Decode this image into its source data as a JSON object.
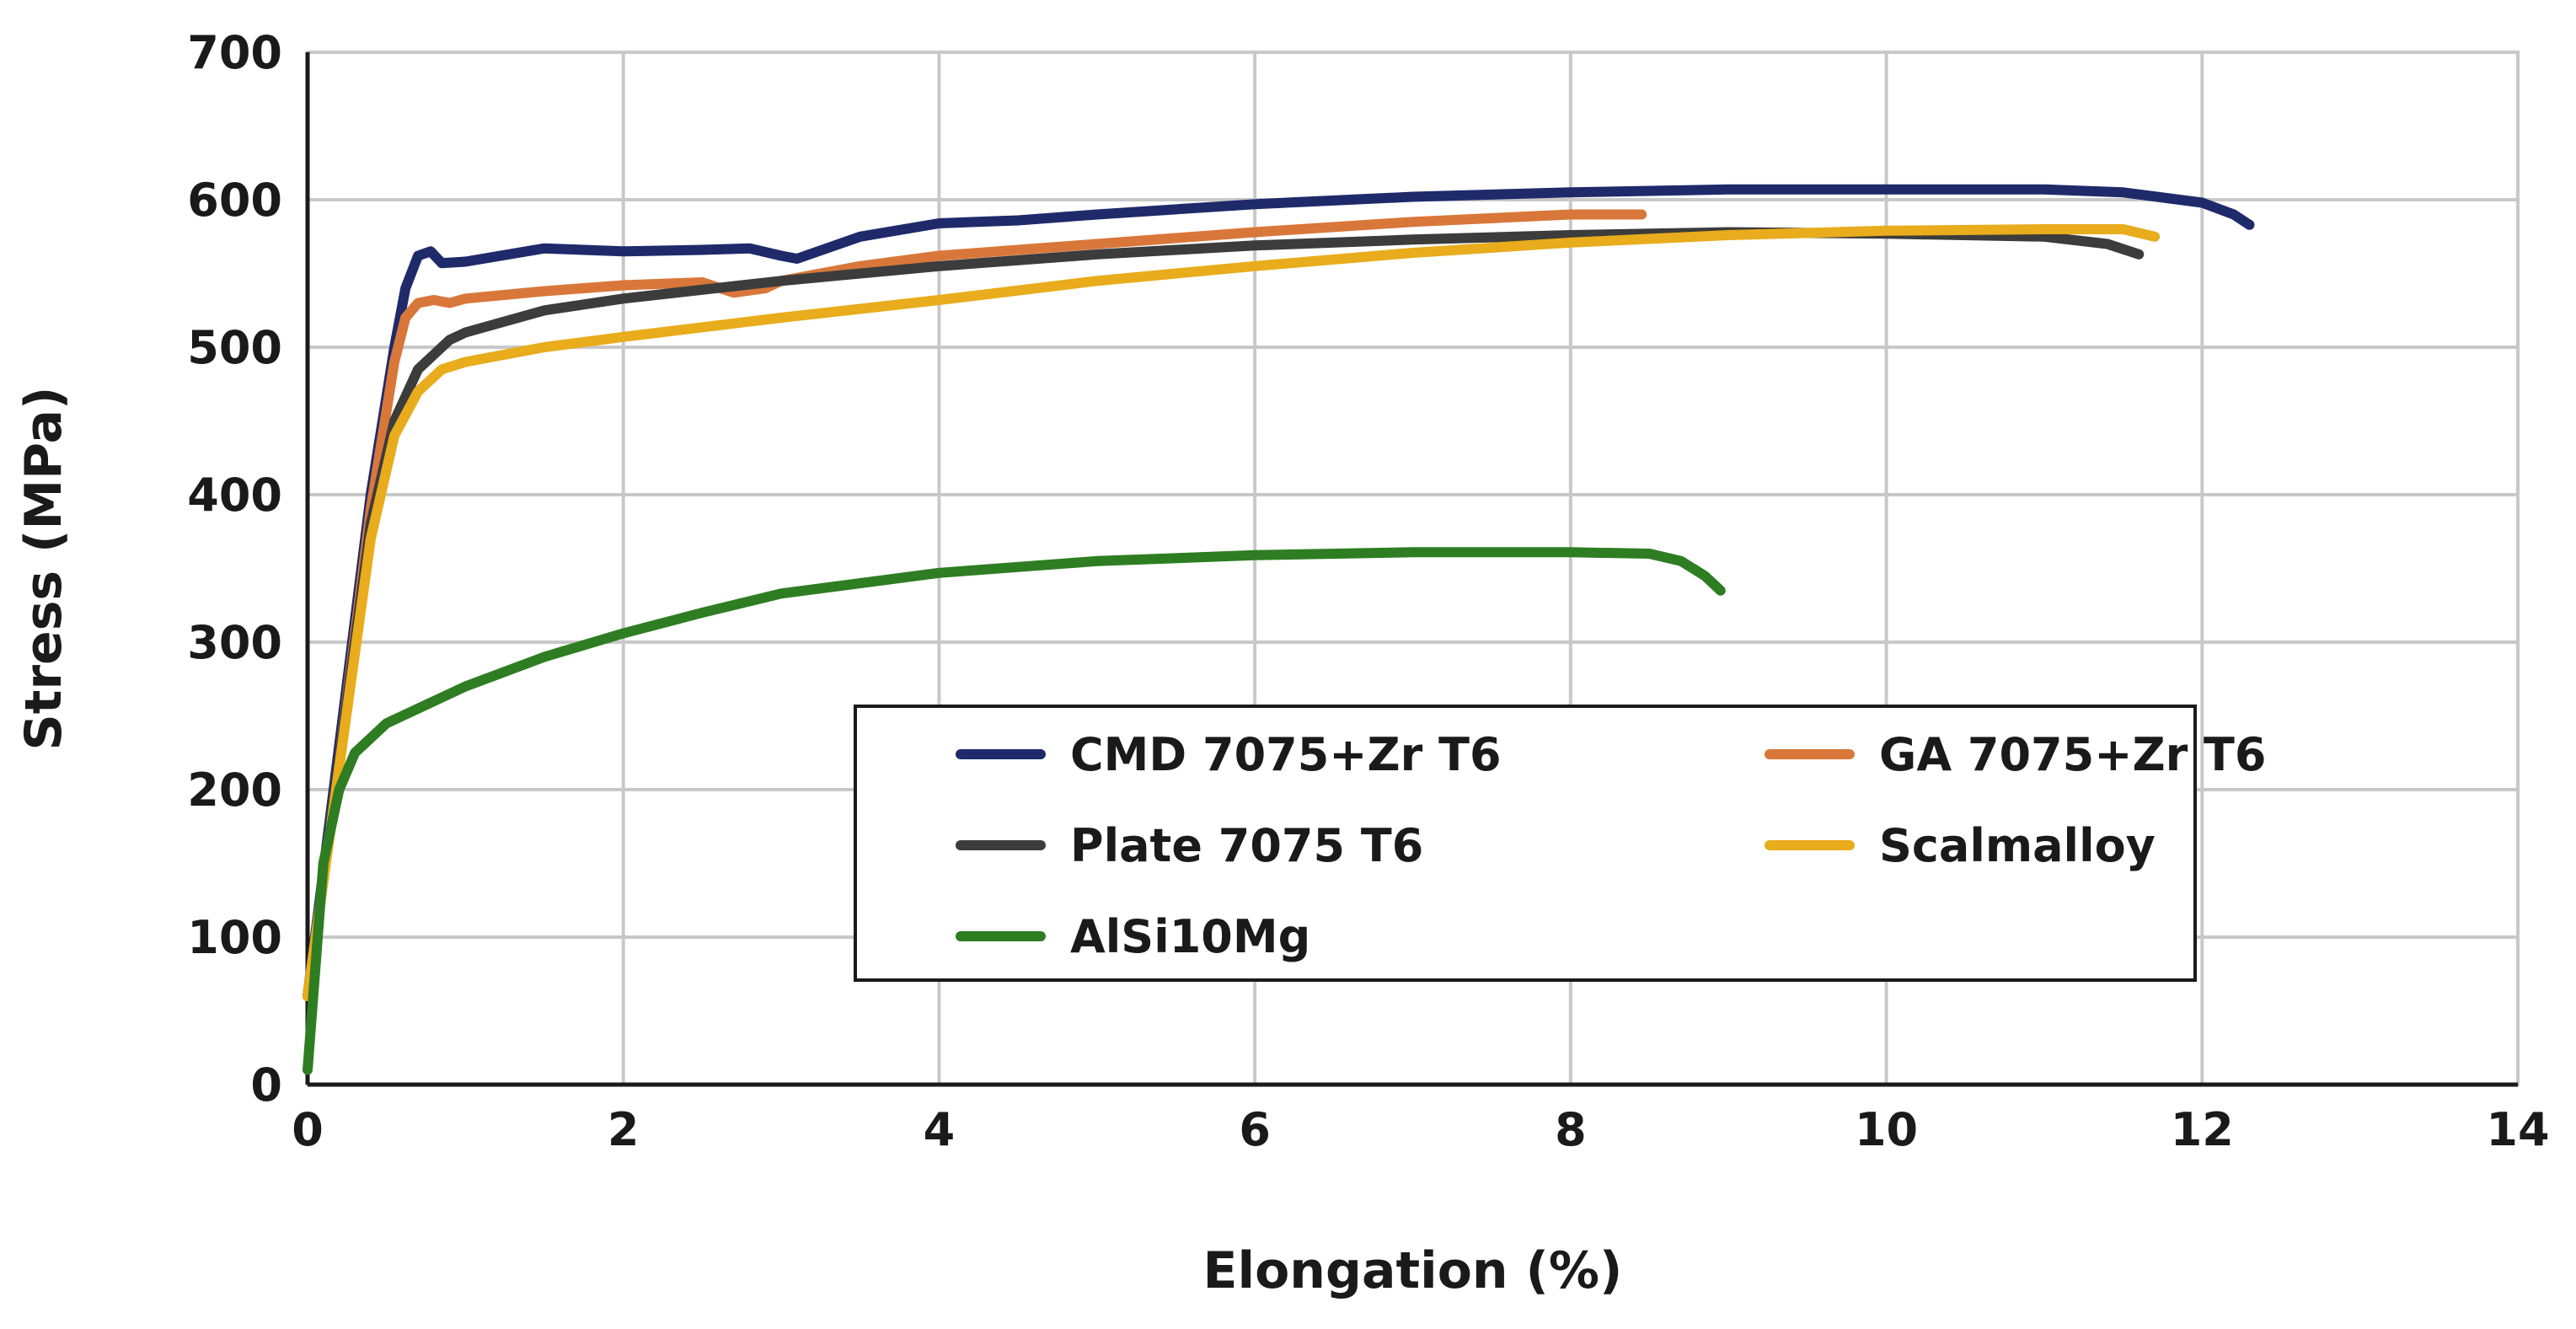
{
  "chart_data": {
    "type": "line",
    "title": "",
    "xlabel": "Elongation (%)",
    "ylabel": "Stress (MPa)",
    "xlim": [
      0,
      14
    ],
    "ylim": [
      0,
      700
    ],
    "xticks": [
      "0",
      "2",
      "4",
      "6",
      "8",
      "10",
      "12",
      "14"
    ],
    "yticks": [
      "0",
      "100",
      "200",
      "300",
      "400",
      "500",
      "600",
      "700"
    ],
    "grid": true,
    "legend_position": "bottom-right",
    "series": [
      {
        "name": "CMD 7075+Zr T6",
        "color": "#1f2a6b",
        "points": [
          [
            0,
            60
          ],
          [
            0.2,
            230
          ],
          [
            0.4,
            400
          ],
          [
            0.55,
            500
          ],
          [
            0.62,
            540
          ],
          [
            0.7,
            562
          ],
          [
            0.78,
            565
          ],
          [
            0.85,
            557
          ],
          [
            1.0,
            558
          ],
          [
            1.5,
            567
          ],
          [
            2.0,
            565
          ],
          [
            2.5,
            566
          ],
          [
            2.8,
            567
          ],
          [
            3.0,
            562
          ],
          [
            3.1,
            560
          ],
          [
            3.5,
            575
          ],
          [
            4.0,
            584
          ],
          [
            4.5,
            586
          ],
          [
            5.0,
            590
          ],
          [
            6.0,
            597
          ],
          [
            7.0,
            602
          ],
          [
            8.0,
            605
          ],
          [
            9.0,
            607
          ],
          [
            10.0,
            607
          ],
          [
            11.0,
            607
          ],
          [
            11.5,
            605
          ],
          [
            12.0,
            598
          ],
          [
            12.2,
            590
          ],
          [
            12.3,
            583
          ]
        ]
      },
      {
        "name": "GA 7075+Zr T6",
        "color": "#d9773a",
        "points": [
          [
            0,
            60
          ],
          [
            0.2,
            220
          ],
          [
            0.4,
            390
          ],
          [
            0.55,
            490
          ],
          [
            0.62,
            520
          ],
          [
            0.7,
            530
          ],
          [
            0.8,
            532
          ],
          [
            0.9,
            530
          ],
          [
            1.0,
            533
          ],
          [
            1.5,
            538
          ],
          [
            2.0,
            542
          ],
          [
            2.5,
            544
          ],
          [
            2.7,
            537
          ],
          [
            2.9,
            540
          ],
          [
            3.0,
            545
          ],
          [
            3.5,
            555
          ],
          [
            4.0,
            562
          ],
          [
            5.0,
            570
          ],
          [
            6.0,
            578
          ],
          [
            7.0,
            585
          ],
          [
            8.0,
            590
          ],
          [
            8.45,
            590
          ]
        ]
      },
      {
        "name": "Plate 7075 T6",
        "color": "#3c3c3c",
        "points": [
          [
            0,
            60
          ],
          [
            0.2,
            220
          ],
          [
            0.4,
            380
          ],
          [
            0.55,
            450
          ],
          [
            0.7,
            485
          ],
          [
            0.9,
            505
          ],
          [
            1.0,
            510
          ],
          [
            1.5,
            525
          ],
          [
            2.0,
            533
          ],
          [
            3.0,
            545
          ],
          [
            4.0,
            555
          ],
          [
            5.0,
            563
          ],
          [
            6.0,
            569
          ],
          [
            7.0,
            573
          ],
          [
            8.0,
            576
          ],
          [
            9.0,
            578
          ],
          [
            10.0,
            577
          ],
          [
            11.0,
            575
          ],
          [
            11.4,
            570
          ],
          [
            11.6,
            563
          ]
        ]
      },
      {
        "name": "Scalmalloy",
        "color": "#e8ac1c",
        "points": [
          [
            0,
            60
          ],
          [
            0.2,
            215
          ],
          [
            0.4,
            370
          ],
          [
            0.55,
            440
          ],
          [
            0.7,
            470
          ],
          [
            0.85,
            485
          ],
          [
            1.0,
            490
          ],
          [
            1.5,
            500
          ],
          [
            2.0,
            507
          ],
          [
            3.0,
            520
          ],
          [
            4.0,
            532
          ],
          [
            5.0,
            545
          ],
          [
            6.0,
            555
          ],
          [
            7.0,
            564
          ],
          [
            8.0,
            571
          ],
          [
            9.0,
            576
          ],
          [
            10.0,
            579
          ],
          [
            11.0,
            580
          ],
          [
            11.5,
            580
          ],
          [
            11.7,
            575
          ]
        ]
      },
      {
        "name": "AlSi10Mg",
        "color": "#2e7d22",
        "points": [
          [
            0,
            10
          ],
          [
            0.05,
            80
          ],
          [
            0.1,
            150
          ],
          [
            0.2,
            200
          ],
          [
            0.3,
            225
          ],
          [
            0.5,
            245
          ],
          [
            1.0,
            270
          ],
          [
            1.5,
            290
          ],
          [
            2.0,
            306
          ],
          [
            2.5,
            320
          ],
          [
            3.0,
            333
          ],
          [
            4.0,
            347
          ],
          [
            5.0,
            355
          ],
          [
            6.0,
            359
          ],
          [
            7.0,
            361
          ],
          [
            8.0,
            361
          ],
          [
            8.5,
            360
          ],
          [
            8.7,
            355
          ],
          [
            8.85,
            345
          ],
          [
            8.95,
            335
          ]
        ]
      }
    ]
  }
}
